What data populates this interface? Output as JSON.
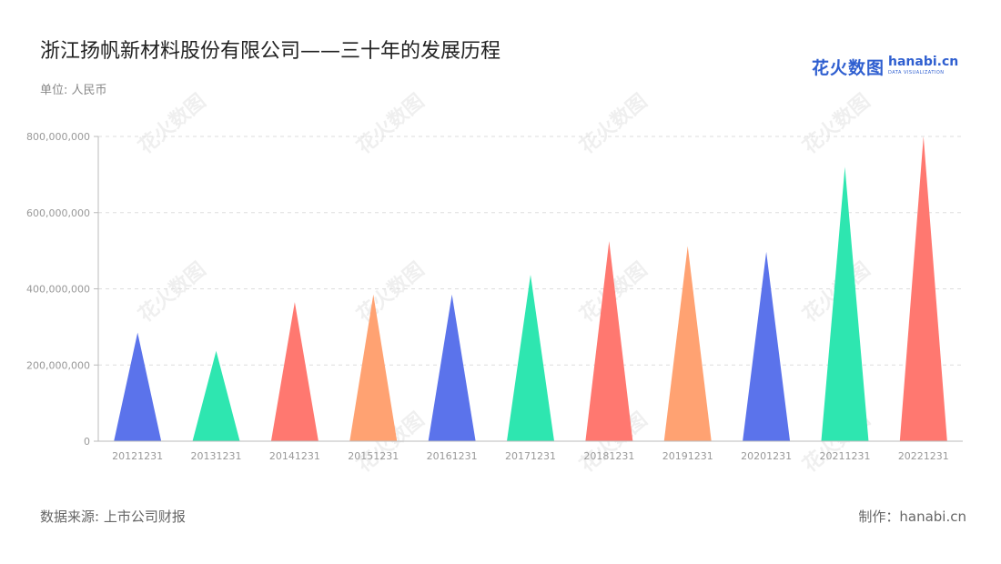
{
  "header": {
    "title": "浙江扬帆新材料股份有限公司——三十年的发展历程",
    "unit": "单位: 人民币"
  },
  "logo": {
    "cn": "花火数图",
    "en": "hanabi.cn",
    "sub": "DATA VISUALIZATION"
  },
  "footer": {
    "source": "数据来源: 上市公司财报",
    "credit": "制作：hanabi.cn"
  },
  "colors": {
    "palette": [
      "#5b73eb",
      "#2ee6b0",
      "#ff7870",
      "#ffa272"
    ],
    "grid": "#dddddd",
    "axis": "#bbbbbb"
  },
  "chart_data": {
    "type": "bar",
    "bar_shape": "triangle",
    "categories": [
      "20121231",
      "20131231",
      "20141231",
      "20151231",
      "20161231",
      "20171231",
      "20181231",
      "20191231",
      "20201231",
      "20211231",
      "20221231"
    ],
    "values": [
      285000000,
      237000000,
      365000000,
      385000000,
      385000000,
      437000000,
      525000000,
      512000000,
      497000000,
      720000000,
      800000000
    ],
    "yticks": [
      0,
      200000000,
      400000000,
      600000000,
      800000000
    ],
    "ytick_labels": [
      "0",
      "200,000,000",
      "400,000,000",
      "600,000,000",
      "800,000,000"
    ],
    "ylim": [
      0,
      800000000
    ],
    "grid": true,
    "legend": "none"
  }
}
